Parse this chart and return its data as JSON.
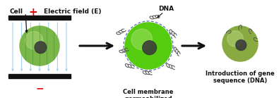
{
  "bg_color": "#ffffff",
  "cell1_color": "#7ab648",
  "cell2_color": "#55cc10",
  "cell3_color": "#88aa40",
  "nucleus_color": "#3a3a3a",
  "electrode_color": "#111111",
  "field_arrow_color": "#99ccee",
  "arrow_color": "#111111",
  "plus_color": "#ee0000",
  "minus_color": "#ee0000",
  "text_color": "#111111",
  "dna_chain_color": "#555555",
  "dashed_color": "#6666bb",
  "label_cell": "Cell",
  "label_efield": "Electric field (E)",
  "label_dna": "DNA",
  "caption2": "Cell membrane\npermeabilized",
  "caption3": "Introduction of gene\nsequence (DNA)",
  "figw": 3.95,
  "figh": 1.39,
  "dpi": 100
}
